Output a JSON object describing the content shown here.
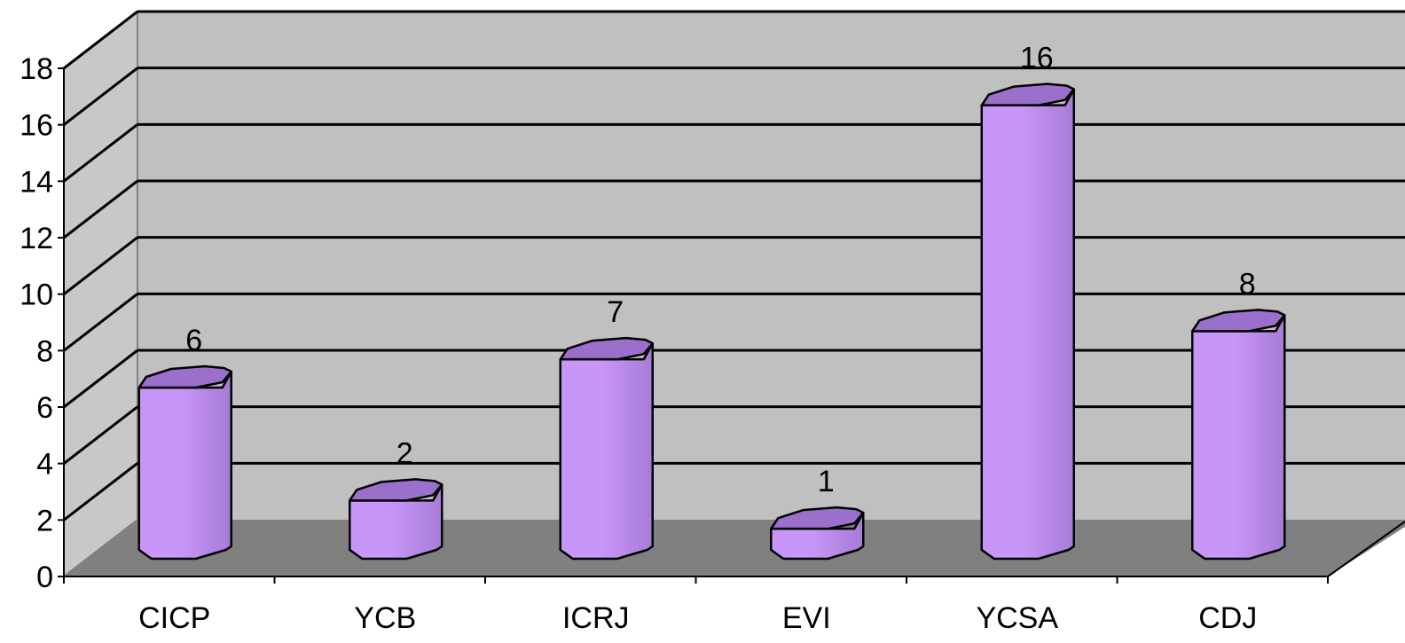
{
  "chart_data": {
    "type": "bar",
    "style": "3d-cylinder",
    "categories": [
      "CICP",
      "YCB",
      "ICRJ",
      "EVI",
      "YCSA",
      "CDJ"
    ],
    "values": [
      6,
      2,
      7,
      1,
      16,
      8
    ],
    "data_labels": [
      "6",
      "2",
      "7",
      "1",
      "16",
      "8"
    ],
    "y_ticks": [
      "0",
      "2",
      "4",
      "6",
      "8",
      "10",
      "12",
      "14",
      "16",
      "18"
    ],
    "ylim": [
      0,
      18
    ],
    "grid": true,
    "legend": "none"
  },
  "colors": {
    "bar_front": "#c896f8",
    "bar_shade": "#a67bd6",
    "bar_top": "#9b6fcc",
    "back_wall": "#c0c0c0",
    "side_wall": "#c8c8c8",
    "floor": "#808080",
    "grid": "#000000"
  }
}
